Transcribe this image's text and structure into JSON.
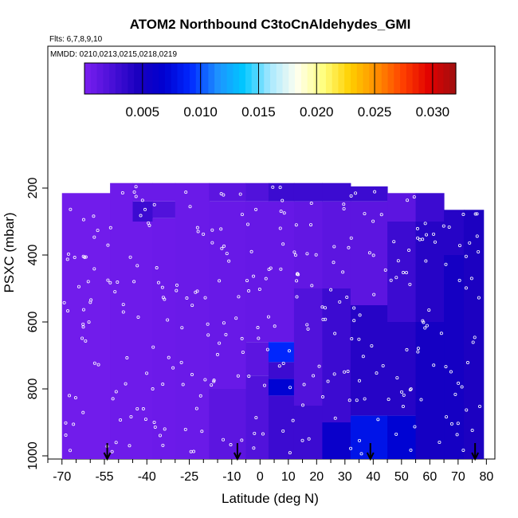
{
  "chart_data": {
    "type": "heatmap",
    "title": "ATOM2 Northbound C3toCnAldehydes_GMI",
    "flights_label": "Flts: 6,7,8,9,10",
    "dates_label": "MMDD: 0210,0213,0215,0218,0219",
    "xlabel": "Latitude (deg N)",
    "ylabel": "PSXC (mbar)",
    "x_tick_labels": [
      "-70",
      "-55",
      "-40",
      "-25",
      "-10",
      "0",
      "10",
      "20",
      "30",
      "40",
      "50",
      "60",
      "70",
      "80"
    ],
    "x_tick_values": [
      -70,
      -55,
      -40,
      -25,
      -10,
      0,
      10,
      20,
      30,
      40,
      50,
      60,
      70,
      80
    ],
    "y_tick_labels": [
      "200",
      "400",
      "600",
      "800",
      "1000"
    ],
    "y_tick_values": [
      200,
      400,
      600,
      800,
      1000
    ],
    "ylim": [
      1010,
      0
    ],
    "y_reversed": true,
    "colorbar": {
      "ticks": [
        "0.005",
        "0.010",
        "0.015",
        "0.020",
        "0.025",
        "0.030"
      ],
      "tick_values": [
        0.005,
        0.01,
        0.015,
        0.02,
        0.025,
        0.03
      ],
      "range": [
        0.0,
        0.032
      ],
      "colors": [
        "#7b1ff0",
        "#4b10d8",
        "#1a00c0",
        "#0000d0",
        "#0028ff",
        "#1e90ff",
        "#00c8ff",
        "#a8e8ff",
        "#fffff0",
        "#ffff80",
        "#ffd000",
        "#ff9000",
        "#ff4000",
        "#e00000",
        "#a01010"
      ]
    },
    "profile_markers_lat": [
      -54,
      -8,
      39,
      76
    ],
    "columns": [
      {
        "lat_min": -70,
        "lat_max": -53,
        "p_top": 215,
        "p_bot": 1010,
        "bands": [
          [
            215,
            1010,
            0.0005
          ]
        ]
      },
      {
        "lat_min": -53,
        "lat_max": -45,
        "p_top": 185,
        "p_bot": 1010,
        "bands": [
          [
            185,
            1010,
            0.0006
          ]
        ]
      },
      {
        "lat_min": -45,
        "lat_max": -38,
        "p_top": 185,
        "p_bot": 1010,
        "bands": [
          [
            185,
            240,
            0.0008
          ],
          [
            240,
            300,
            0.003
          ],
          [
            300,
            1010,
            0.0006
          ]
        ]
      },
      {
        "lat_min": -38,
        "lat_max": -30,
        "p_top": 185,
        "p_bot": 1010,
        "bands": [
          [
            185,
            240,
            0.0008
          ],
          [
            240,
            290,
            0.002
          ],
          [
            290,
            1010,
            0.0007
          ]
        ]
      },
      {
        "lat_min": -30,
        "lat_max": -18,
        "p_top": 185,
        "p_bot": 1010,
        "bands": [
          [
            185,
            1010,
            0.0008
          ]
        ]
      },
      {
        "lat_min": -18,
        "lat_max": -5,
        "p_top": 185,
        "p_bot": 1010,
        "bands": [
          [
            185,
            240,
            0.0015
          ],
          [
            240,
            800,
            0.0009
          ],
          [
            800,
            1010,
            0.0015
          ]
        ]
      },
      {
        "lat_min": -5,
        "lat_max": 3,
        "p_top": 185,
        "p_bot": 1010,
        "bands": [
          [
            185,
            240,
            0.002
          ],
          [
            240,
            660,
            0.001
          ],
          [
            660,
            760,
            0.0015
          ],
          [
            760,
            1010,
            0.002
          ]
        ]
      },
      {
        "lat_min": 3,
        "lat_max": 12,
        "p_top": 185,
        "p_bot": 1010,
        "bands": [
          [
            185,
            240,
            0.003
          ],
          [
            240,
            660,
            0.001
          ],
          [
            660,
            720,
            0.009
          ],
          [
            720,
            770,
            0.003
          ],
          [
            770,
            820,
            0.007
          ],
          [
            820,
            1010,
            0.003
          ]
        ]
      },
      {
        "lat_min": 12,
        "lat_max": 22,
        "p_top": 185,
        "p_bot": 1010,
        "bands": [
          [
            185,
            240,
            0.003
          ],
          [
            240,
            500,
            0.0012
          ],
          [
            500,
            850,
            0.002
          ],
          [
            850,
            1010,
            0.003
          ]
        ]
      },
      {
        "lat_min": 22,
        "lat_max": 32,
        "p_top": 185,
        "p_bot": 1010,
        "bands": [
          [
            185,
            240,
            0.003
          ],
          [
            240,
            500,
            0.0015
          ],
          [
            500,
            900,
            0.003
          ],
          [
            900,
            1010,
            0.006
          ]
        ]
      },
      {
        "lat_min": 32,
        "lat_max": 45,
        "p_top": 195,
        "p_bot": 1010,
        "bands": [
          [
            195,
            240,
            0.003
          ],
          [
            240,
            550,
            0.0015
          ],
          [
            550,
            880,
            0.004
          ],
          [
            880,
            1010,
            0.008
          ]
        ]
      },
      {
        "lat_min": 45,
        "lat_max": 55,
        "p_top": 215,
        "p_bot": 1010,
        "bands": [
          [
            215,
            300,
            0.0015
          ],
          [
            300,
            600,
            0.003
          ],
          [
            600,
            880,
            0.004
          ],
          [
            880,
            1010,
            0.007
          ]
        ]
      },
      {
        "lat_min": 55,
        "lat_max": 65,
        "p_top": 215,
        "p_bot": 1010,
        "bands": [
          [
            215,
            300,
            0.003
          ],
          [
            300,
            600,
            0.004
          ],
          [
            600,
            1010,
            0.005
          ]
        ]
      },
      {
        "lat_min": 65,
        "lat_max": 72,
        "p_top": 265,
        "p_bot": 1010,
        "bands": [
          [
            265,
            400,
            0.004
          ],
          [
            400,
            1010,
            0.005
          ]
        ]
      },
      {
        "lat_min": 72,
        "lat_max": 79,
        "p_top": 265,
        "p_bot": 1010,
        "bands": [
          [
            265,
            1010,
            0.0045
          ]
        ]
      }
    ]
  }
}
